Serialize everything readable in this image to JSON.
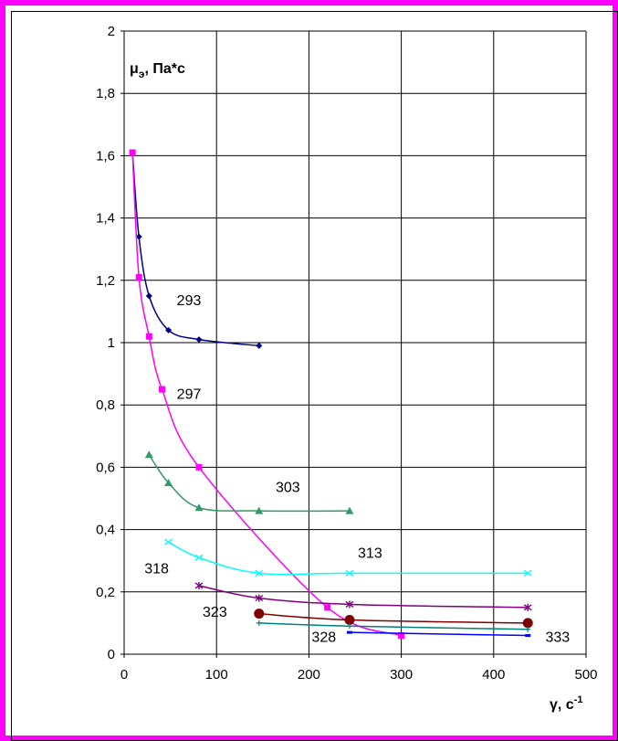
{
  "chart_data": {
    "type": "scatter",
    "title": "",
    "ylabel": "μ",
    "ylabel_sub": "э",
    "ylabel_rest": ", Па*с",
    "xlabel": "γ, с",
    "xlabel_sup": "-1",
    "xlim": [
      0,
      500
    ],
    "ylim": [
      0,
      2
    ],
    "grid": true,
    "x_ticks": [
      0,
      100,
      200,
      300,
      400,
      500
    ],
    "x_tick_labels": [
      "0",
      "100",
      "200",
      "300",
      "400",
      "500"
    ],
    "y_ticks": [
      0,
      0.2,
      0.4,
      0.6,
      0.8,
      1,
      1.2,
      1.4,
      1.6,
      1.8,
      2
    ],
    "y_tick_labels": [
      "0",
      "0,2",
      "0,4",
      "0,6",
      "0,8",
      "1",
      "1,2",
      "1,4",
      "1,6",
      "1,8",
      "2"
    ],
    "series": [
      {
        "color": "#000080",
        "marker": "diamond",
        "x": [
          9,
          16,
          27,
          48,
          81,
          146
        ],
        "y": [
          1.61,
          1.34,
          1.15,
          1.04,
          1.01,
          0.99
        ]
      },
      {
        "color": "#ff00ff",
        "marker": "square",
        "x": [
          9,
          16,
          27,
          41,
          81,
          220,
          300
        ],
        "y": [
          1.61,
          1.21,
          1.02,
          0.85,
          0.6,
          0.15,
          0.06
        ]
      },
      {
        "color": "#339966",
        "marker": "triangle",
        "x": [
          27,
          48,
          81,
          146,
          244
        ],
        "y": [
          0.64,
          0.55,
          0.47,
          0.46,
          0.46
        ]
      },
      {
        "color": "#00ffff",
        "marker": "x",
        "x": [
          48,
          81,
          146,
          244,
          437
        ],
        "y": [
          0.36,
          0.31,
          0.26,
          0.26,
          0.26
        ]
      },
      {
        "color": "#800080",
        "marker": "star",
        "x": [
          81,
          146,
          244,
          437
        ],
        "y": [
          0.22,
          0.18,
          0.16,
          0.15
        ]
      },
      {
        "color": "#800000",
        "marker": "circle",
        "x": [
          146,
          244,
          437
        ],
        "y": [
          0.13,
          0.11,
          0.1
        ]
      },
      {
        "color": "#008080",
        "marker": "plus",
        "x": [
          146,
          244,
          437
        ],
        "y": [
          0.1,
          0.09,
          0.08
        ]
      },
      {
        "color": "#0000ff",
        "marker": "dash",
        "x": [
          244,
          437
        ],
        "y": [
          0.07,
          0.06
        ]
      }
    ],
    "annotations": [
      {
        "text": "293",
        "x": 57,
        "y": 1.12
      },
      {
        "text": "297",
        "x": 57,
        "y": 0.82
      },
      {
        "text": "303",
        "x": 164,
        "y": 0.52
      },
      {
        "text": "313",
        "x": 253,
        "y": 0.31
      },
      {
        "text": "318",
        "x": 22,
        "y": 0.26
      },
      {
        "text": "323",
        "x": 85,
        "y": 0.12
      },
      {
        "text": "328",
        "x": 203,
        "y": 0.04
      },
      {
        "text": "333",
        "x": 456,
        "y": 0.04
      }
    ]
  }
}
